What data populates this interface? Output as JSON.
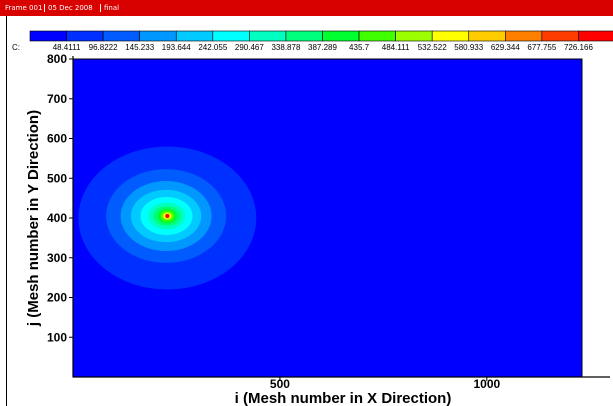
{
  "window": {
    "title_segments": [
      "Frame 001",
      "05 Dec 2008",
      "final"
    ]
  },
  "chart_data": {
    "type": "heatmap",
    "xlabel": "i (Mesh number in X Direction)",
    "ylabel": "j (Mesh number in Y Direction)",
    "xticks": [
      500,
      1000
    ],
    "yticks": [
      100,
      200,
      300,
      400,
      500,
      600,
      700,
      800
    ],
    "xlim": [
      0,
      1230
    ],
    "ylim": [
      0,
      800
    ],
    "grid": false,
    "colorbar": {
      "prefix": "C:",
      "placement": "top",
      "levels": [
        "48.4111",
        "96.8222",
        "145.233",
        "193.644",
        "242.055",
        "290.467",
        "338.878",
        "387.289",
        "435.7",
        "484.111",
        "532.522",
        "580.933",
        "629.344",
        "677.755",
        "726.166"
      ],
      "colors": [
        "#0000ff",
        "#0030ff",
        "#005cff",
        "#0098ff",
        "#00caff",
        "#00ffff",
        "#00ffc0",
        "#00ff7a",
        "#00ff30",
        "#40ff00",
        "#9cff00",
        "#ffff00",
        "#ffcc00",
        "#ff8000",
        "#ff3c00",
        "#ff0000"
      ]
    },
    "field": {
      "source_center": [
        228,
        405
      ],
      "contours": [
        {
          "level": "48.4111",
          "center": [
            228,
            400
          ],
          "rx": 215,
          "ry": 180
        },
        {
          "level": "96.8222",
          "center": [
            225,
            405
          ],
          "rx": 145,
          "ry": 118
        },
        {
          "level": "145.233",
          "center": [
            225,
            405
          ],
          "rx": 110,
          "ry": 88
        },
        {
          "level": "193.644",
          "center": [
            225,
            405
          ],
          "rx": 85,
          "ry": 66
        },
        {
          "level": "242.055",
          "center": [
            226,
            405
          ],
          "rx": 63,
          "ry": 48
        },
        {
          "level": "290.467",
          "center": [
            227,
            405
          ],
          "rx": 45,
          "ry": 34
        },
        {
          "level": "338.878",
          "center": [
            227,
            405
          ],
          "rx": 33,
          "ry": 25
        },
        {
          "level": "387.289",
          "center": [
            228,
            405
          ],
          "rx": 24,
          "ry": 19
        },
        {
          "level": "435.7",
          "center": [
            228,
            405
          ],
          "rx": 17,
          "ry": 14
        },
        {
          "level": "484.111",
          "center": [
            228,
            405
          ],
          "rx": 12,
          "ry": 10
        },
        {
          "level": "532.522",
          "center": [
            228,
            405
          ],
          "rx": 9,
          "ry": 7
        },
        {
          "level": "580.933",
          "center": [
            228,
            405
          ],
          "rx": 6,
          "ry": 5
        },
        {
          "level": "629.344",
          "center": [
            228,
            405
          ],
          "rx": 4,
          "ry": 3.5
        },
        {
          "level": "677.755",
          "center": [
            228,
            405
          ],
          "rx": 3,
          "ry": 2.5
        },
        {
          "level": "726.166",
          "center": [
            228,
            405
          ],
          "rx": 2,
          "ry": 1.6
        }
      ]
    }
  }
}
